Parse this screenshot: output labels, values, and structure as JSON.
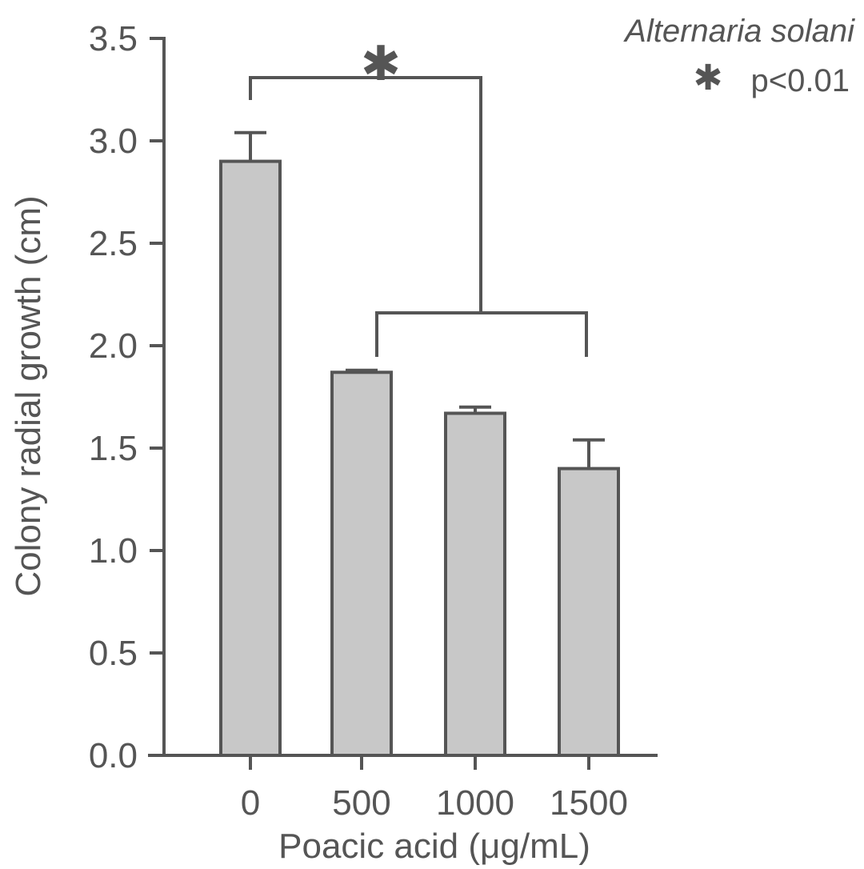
{
  "chart_data": {
    "type": "bar",
    "categories": [
      "0",
      "500",
      "1000",
      "1500"
    ],
    "values": [
      2.9,
      1.87,
      1.67,
      1.4
    ],
    "errors": [
      0.14,
      0.01,
      0.03,
      0.14
    ],
    "xlabel": "Poacic acid (μg/mL)",
    "ylabel": "Colony radial growth (cm)",
    "ylim": [
      0,
      3.5
    ],
    "yticks": [
      "0.0",
      "0.5",
      "1.0",
      "1.5",
      "2.0",
      "2.5",
      "3.0",
      "3.5"
    ],
    "grid": false,
    "legend": "none",
    "bar_color": "#c8c8c8",
    "stroke_color": "#555555",
    "annotations": {
      "organism": "Alternaria solani",
      "significance_star": "✱",
      "significance_text": "p<0.01",
      "bracket_star": "✱"
    }
  }
}
